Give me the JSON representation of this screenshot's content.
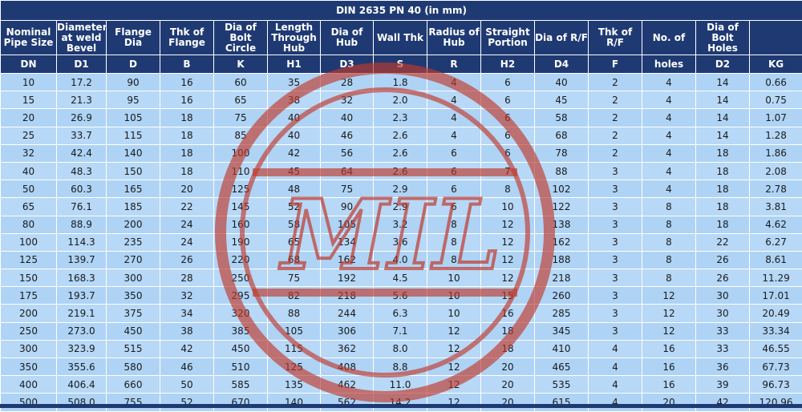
{
  "title": "DIN 2635 PN 40 (in mm)",
  "headers": [
    "Nominal Pipe Size",
    "Diameter at weld Bevel",
    "Flange Dia",
    "Thk of Flange",
    "Dia of Bolt Circle",
    "Length Through Hub",
    "Dia of Hub",
    "Wall Thk",
    "Radius of Hub",
    "Straight Portion",
    "Dia of R/F",
    "Thk of R/F",
    "No. of",
    "Dia of Bolt Holes",
    ""
  ],
  "abbreviations": [
    "DN",
    "D1",
    "D",
    "B",
    "K",
    "H1",
    "D3",
    "S",
    "R",
    "H2",
    "D4",
    "F",
    "holes",
    "D2",
    "KG"
  ],
  "rows": [
    [
      "10",
      "17.2",
      "90",
      "16",
      "60",
      "35",
      "28",
      "1.8",
      "4",
      "6",
      "40",
      "2",
      "4",
      "14",
      "0.66"
    ],
    [
      "15",
      "21.3",
      "95",
      "16",
      "65",
      "38",
      "32",
      "2.0",
      "4",
      "6",
      "45",
      "2",
      "4",
      "14",
      "0.75"
    ],
    [
      "20",
      "26.9",
      "105",
      "18",
      "75",
      "40",
      "40",
      "2.3",
      "4",
      "6",
      "58",
      "2",
      "4",
      "14",
      "1.07"
    ],
    [
      "25",
      "33.7",
      "115",
      "18",
      "85",
      "40",
      "46",
      "2.6",
      "4",
      "6",
      "68",
      "2",
      "4",
      "14",
      "1.28"
    ],
    [
      "32",
      "42.4",
      "140",
      "18",
      "100",
      "42",
      "56",
      "2.6",
      "6",
      "6",
      "78",
      "2",
      "4",
      "18",
      "1.86"
    ],
    [
      "40",
      "48.3",
      "150",
      "18",
      "110",
      "45",
      "64",
      "2.6",
      "6",
      "7",
      "88",
      "3",
      "4",
      "18",
      "2.08"
    ],
    [
      "50",
      "60.3",
      "165",
      "20",
      "125",
      "48",
      "75",
      "2.9",
      "6",
      "8",
      "102",
      "3",
      "4",
      "18",
      "2.78"
    ],
    [
      "65",
      "76.1",
      "185",
      "22",
      "145",
      "52",
      "90",
      "2.9",
      "6",
      "10",
      "122",
      "3",
      "8",
      "18",
      "3.81"
    ],
    [
      "80",
      "88.9",
      "200",
      "24",
      "160",
      "58",
      "105",
      "3.2",
      "8",
      "12",
      "138",
      "3",
      "8",
      "18",
      "4.62"
    ],
    [
      "100",
      "114.3",
      "235",
      "24",
      "190",
      "65",
      "134",
      "3.6",
      "8",
      "12",
      "162",
      "3",
      "8",
      "22",
      "6.27"
    ],
    [
      "125",
      "139.7",
      "270",
      "26",
      "220",
      "68",
      "162",
      "4.0",
      "8",
      "12",
      "188",
      "3",
      "8",
      "26",
      "8.61"
    ],
    [
      "150",
      "168.3",
      "300",
      "28",
      "250",
      "75",
      "192",
      "4.5",
      "10",
      "12",
      "218",
      "3",
      "8",
      "26",
      "11.29"
    ],
    [
      "175",
      "193.7",
      "350",
      "32",
      "295",
      "82",
      "218",
      "5.6",
      "10",
      "15",
      "260",
      "3",
      "12",
      "30",
      "17.01"
    ],
    [
      "200",
      "219.1",
      "375",
      "34",
      "320",
      "88",
      "244",
      "6.3",
      "10",
      "16",
      "285",
      "3",
      "12",
      "30",
      "20.49"
    ],
    [
      "250",
      "273.0",
      "450",
      "38",
      "385",
      "105",
      "306",
      "7.1",
      "12",
      "18",
      "345",
      "3",
      "12",
      "33",
      "33.34"
    ],
    [
      "300",
      "323.9",
      "515",
      "42",
      "450",
      "115",
      "362",
      "8.0",
      "12",
      "18",
      "410",
      "4",
      "16",
      "33",
      "46.55"
    ],
    [
      "350",
      "355.6",
      "580",
      "46",
      "510",
      "125",
      "408",
      "8.8",
      "12",
      "20",
      "465",
      "4",
      "16",
      "36",
      "67.73"
    ],
    [
      "400",
      "406.4",
      "660",
      "50",
      "585",
      "135",
      "462",
      "11.0",
      "12",
      "20",
      "535",
      "4",
      "16",
      "39",
      "96.73"
    ],
    [
      "500",
      "508.0",
      "755",
      "52",
      "670",
      "140",
      "562",
      "14.2",
      "12",
      "20",
      "615",
      "4",
      "20",
      "42",
      "120.96"
    ]
  ],
  "watermark": {
    "text": "MIL",
    "icon": "circular-stamp-watermark",
    "color": "#c0392b"
  },
  "colors": {
    "header_bg": "#1f3a73",
    "header_text": "#ffffff",
    "row_bg": "#b7d8f7"
  }
}
